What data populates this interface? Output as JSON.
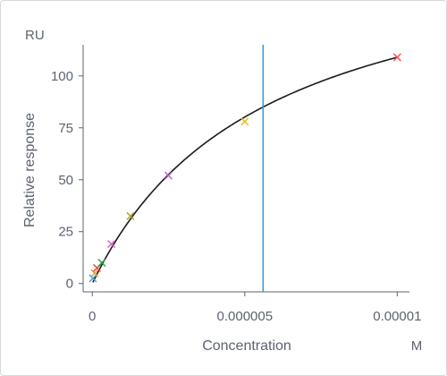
{
  "chart_data": {
    "type": "scatter",
    "title": "",
    "xlabel": "Concentration",
    "ylabel": "Relative response",
    "x_unit": "M",
    "y_unit": "RU",
    "xlim": [
      -3e-07,
      1.04e-05
    ],
    "ylim": [
      -4,
      115
    ],
    "x_ticks": [
      {
        "value": 0,
        "label": "0"
      },
      {
        "value": 5e-06,
        "label": "0.000005"
      },
      {
        "value": 1e-05,
        "label": "0.00001"
      }
    ],
    "y_ticks": [
      {
        "value": 0,
        "label": "0"
      },
      {
        "value": 25,
        "label": "25"
      },
      {
        "value": 50,
        "label": "50"
      },
      {
        "value": 75,
        "label": "75"
      },
      {
        "value": 100,
        "label": "100"
      }
    ],
    "points": [
      {
        "x": 1.95e-08,
        "y": 2.5,
        "color": "#4fa3d9"
      },
      {
        "x": 7.8e-08,
        "y": 5,
        "color": "#f0a030"
      },
      {
        "x": 1.56e-07,
        "y": 7.5,
        "color": "#e05050"
      },
      {
        "x": 3.13e-07,
        "y": 10,
        "color": "#2aa040"
      },
      {
        "x": 6.25e-07,
        "y": 19,
        "color": "#e060c0"
      },
      {
        "x": 1.25e-06,
        "y": 32.5,
        "color": "#b0a020"
      },
      {
        "x": 2.5e-06,
        "y": 52,
        "color": "#c060d0"
      },
      {
        "x": 5e-06,
        "y": 78,
        "color": "#e8c020"
      },
      {
        "x": 1e-05,
        "y": 109,
        "color": "#f05858"
      }
    ],
    "fit_curve": {
      "model": "1:1 binding",
      "rmax": 170,
      "kd": 5.6e-06,
      "color": "#1a1a1a"
    },
    "vertical_line": {
      "x": 5.6e-06,
      "color": "#3a9fd0"
    },
    "grid": false,
    "legend": "none"
  }
}
